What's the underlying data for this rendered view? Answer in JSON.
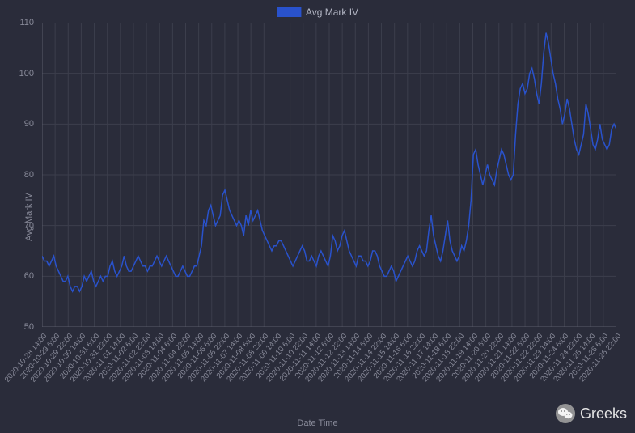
{
  "chart": {
    "type": "line",
    "background_color": "#2a2c3a",
    "grid_color": "#3c3e4c",
    "border_color": "#5a5c6a",
    "tick_font_color": "#888a99",
    "tick_fontsize": 10,
    "legend": {
      "label": "Avg Mark IV",
      "color": "#2952cc",
      "fontsize": 12,
      "font_color": "#b4b7c5"
    },
    "ylabel": "Avg Mark IV",
    "xlabel": "Date Time",
    "label_fontsize": 11,
    "ylim": [
      50,
      110
    ],
    "ytick_step": 10,
    "yticks": [
      50,
      60,
      70,
      80,
      90,
      100,
      110
    ],
    "xticks": [
      "2020-10-28 14:00",
      "2020-10-29 6:00",
      "2020-10-29 22:00",
      "2020-10-30 14:00",
      "2020-10-31 6:00",
      "2020-10-31 22:00",
      "2020-11-01 14:00",
      "2020-11-02 6:00",
      "2020-11-02 22:00",
      "2020-11-03 14:00",
      "2020-11-04 6:00",
      "2020-11-04 22:00",
      "2020-11-05 14:00",
      "2020-11-06 6:00",
      "2020-11-06 22:00",
      "2020-11-07 14:00",
      "2020-11-08 6:00",
      "2020-11-08 22:00",
      "2020-11-09 14:00",
      "2020-11-10 6:00",
      "2020-11-10 22:00",
      "2020-11-11 14:00",
      "2020-11-12 6:00",
      "2020-11-12 22:00",
      "2020-11-13 14:00",
      "2020-11-14 6:00",
      "2020-11-14 22:00",
      "2020-11-15 14:00",
      "2020-11-16 6:00",
      "2020-11-16 22:00",
      "2020-11-17 14:00",
      "2020-11-18 6:00",
      "2020-11-18 22:00",
      "2020-11-19 14:00",
      "2020-11-20 6:00",
      "2020-11-20 22:00",
      "2020-11-21 14:00",
      "2020-11-22 6:00",
      "2020-11-22 22:00",
      "2020-11-23 14:00",
      "2020-11-24 6:00",
      "2020-11-24 22:00",
      "2020-11-25 14:00",
      "2020-11-26 6:00",
      "2020-11-26 22:00"
    ],
    "series": {
      "color": "#2952cc",
      "line_width": 1.5,
      "values": [
        64,
        63,
        63,
        62,
        63,
        64,
        62,
        61,
        60,
        59,
        59,
        60,
        58,
        57,
        58,
        58,
        57,
        58,
        60,
        59,
        60,
        61,
        59,
        58,
        59,
        60,
        59,
        60,
        60,
        62,
        63,
        61,
        60,
        61,
        62,
        64,
        62,
        61,
        61,
        62,
        63,
        64,
        63,
        62,
        62,
        61,
        62,
        62,
        63,
        64,
        63,
        62,
        63,
        64,
        63,
        62,
        61,
        60,
        60,
        61,
        62,
        61,
        60,
        60,
        61,
        62,
        62,
        64,
        66,
        71,
        70,
        73,
        74,
        72,
        70,
        71,
        72,
        76,
        77,
        75,
        73,
        72,
        71,
        70,
        71,
        70,
        68,
        72,
        70,
        73,
        71,
        72,
        73,
        71,
        69,
        68,
        67,
        66,
        65,
        66,
        66,
        67,
        67,
        66,
        65,
        64,
        63,
        62,
        63,
        64,
        65,
        66,
        65,
        63,
        63,
        64,
        63,
        62,
        64,
        65,
        64,
        63,
        62,
        64,
        68,
        67,
        65,
        66,
        68,
        69,
        67,
        65,
        64,
        63,
        62,
        64,
        64,
        63,
        63,
        62,
        63,
        65,
        65,
        64,
        62,
        61,
        60,
        60,
        61,
        62,
        61,
        59,
        60,
        61,
        62,
        63,
        64,
        63,
        62,
        63,
        65,
        66,
        65,
        64,
        65,
        69,
        72,
        68,
        66,
        64,
        63,
        65,
        68,
        71,
        67,
        65,
        64,
        63,
        64,
        66,
        65,
        67,
        70,
        75,
        84,
        85,
        82,
        80,
        78,
        80,
        82,
        80,
        79,
        78,
        81,
        83,
        85,
        84,
        82,
        80,
        79,
        80,
        88,
        94,
        97,
        98,
        96,
        97,
        100,
        101,
        99,
        96,
        94,
        98,
        104,
        108,
        106,
        103,
        100,
        98,
        95,
        93,
        90,
        92,
        95,
        93,
        90,
        87,
        85,
        84,
        86,
        88,
        94,
        92,
        89,
        86,
        85,
        87,
        90,
        87,
        86,
        85,
        86,
        89,
        90,
        89
      ]
    }
  },
  "watermark": {
    "text": "Greeks",
    "icon_bg": "#aaaaaa",
    "icon_fg": "#ffffff"
  }
}
